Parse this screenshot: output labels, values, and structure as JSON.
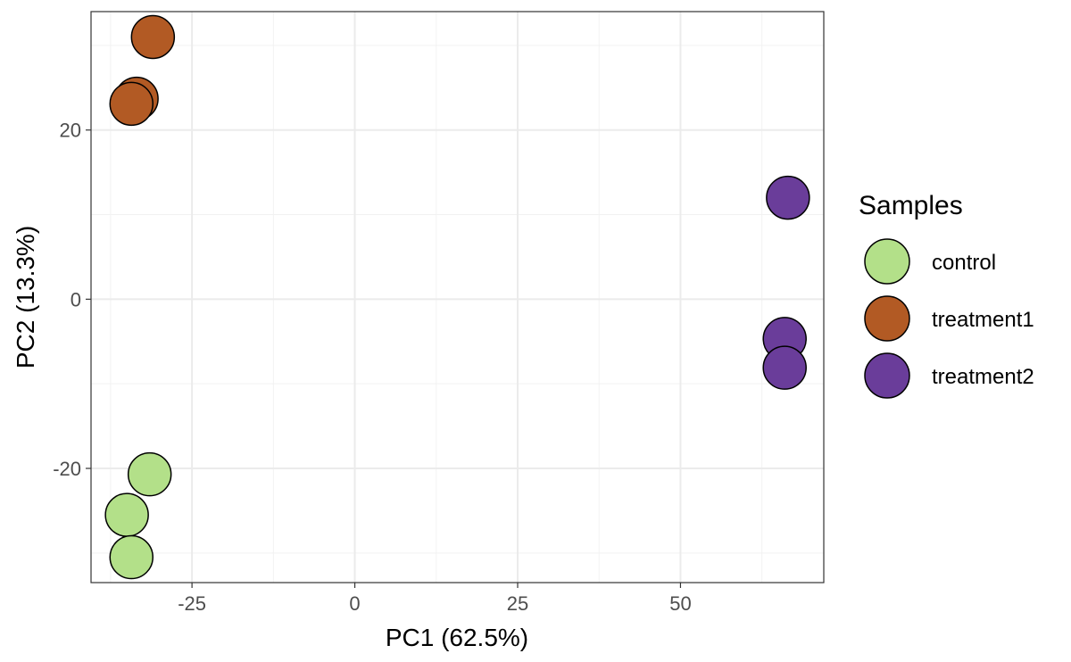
{
  "chart_data": {
    "type": "scatter",
    "title": "",
    "xlabel": "PC1 (62.5%)",
    "ylabel": "PC2 (13.3%)",
    "xlim": [
      -40.5,
      72
    ],
    "ylim": [
      -33.5,
      34
    ],
    "x_ticks": [
      {
        "value": -25,
        "label": "-25"
      },
      {
        "value": 0,
        "label": "0"
      },
      {
        "value": 25,
        "label": "25"
      },
      {
        "value": 50,
        "label": "50"
      }
    ],
    "y_ticks": [
      {
        "value": -20,
        "label": "-20"
      },
      {
        "value": 0,
        "label": "0"
      },
      {
        "value": 20,
        "label": "20"
      }
    ],
    "grid": true,
    "legend": {
      "title": "Samples",
      "position": "right"
    },
    "series": [
      {
        "name": "control",
        "color": "#b3e089",
        "points": [
          {
            "x": -31.5,
            "y": -20.7
          },
          {
            "x": -35.0,
            "y": -25.5
          },
          {
            "x": -34.3,
            "y": -30.5
          }
        ]
      },
      {
        "name": "treatment1",
        "color": "#b25a24",
        "points": [
          {
            "x": -31.0,
            "y": 31.0
          },
          {
            "x": -33.5,
            "y": 23.7
          },
          {
            "x": -34.3,
            "y": 23.1
          }
        ]
      },
      {
        "name": "treatment2",
        "color": "#6a3d9a",
        "points": [
          {
            "x": 66.5,
            "y": 12.0
          },
          {
            "x": 66.0,
            "y": -4.7
          },
          {
            "x": 66.0,
            "y": -8.1
          }
        ]
      }
    ]
  }
}
